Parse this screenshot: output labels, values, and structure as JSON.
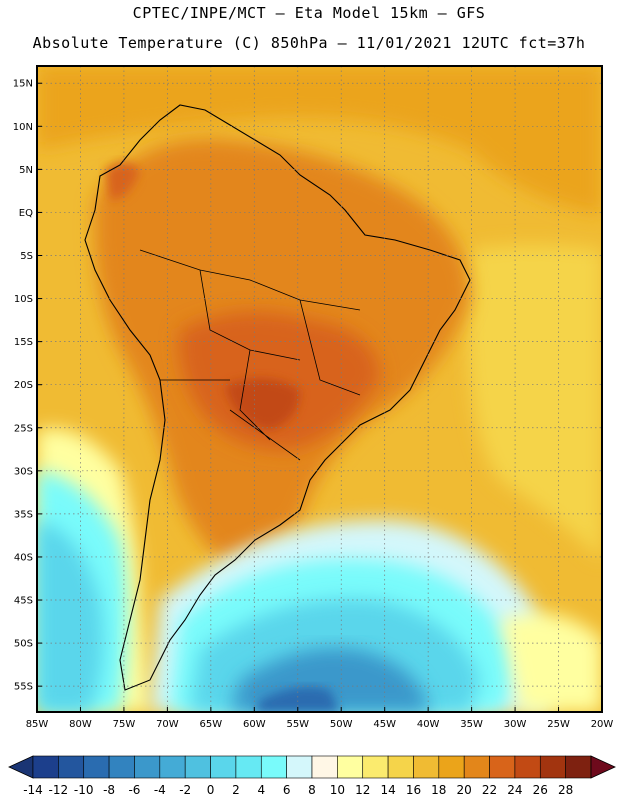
{
  "header": {
    "line1": "CPTEC/INPE/MCT –  Eta Model 15km – GFS",
    "line2": "Absolute Temperature (C) 850hPa – 11/01/2021 12UTC fct=37h"
  },
  "map": {
    "lat_labels": [
      "15N",
      "10N",
      "5N",
      "EQ",
      "5S",
      "10S",
      "15S",
      "20S",
      "25S",
      "30S",
      "35S",
      "40S",
      "45S",
      "50S",
      "55S"
    ],
    "lat_values": [
      15,
      10,
      5,
      0,
      -5,
      -10,
      -15,
      -20,
      -25,
      -30,
      -35,
      -40,
      -45,
      -50,
      -55
    ],
    "lon_labels": [
      "85W",
      "80W",
      "75W",
      "70W",
      "65W",
      "60W",
      "55W",
      "50W",
      "45W",
      "40W",
      "35W",
      "30W",
      "25W",
      "20W"
    ],
    "lon_values": [
      -85,
      -80,
      -75,
      -70,
      -65,
      -60,
      -55,
      -50,
      -45,
      -40,
      -35,
      -30,
      -25,
      -20
    ],
    "lon_range": [
      -85,
      -20
    ],
    "lat_range": [
      -58,
      17
    ]
  },
  "colorbar": {
    "labels": [
      "-14",
      "-12",
      "-10",
      "-8",
      "-6",
      "-4",
      "-2",
      "0",
      "2",
      "4",
      "6",
      "8",
      "10",
      "12",
      "14",
      "16",
      "18",
      "20",
      "22",
      "24",
      "26",
      "28"
    ],
    "colors": [
      "#1c3f8c",
      "#23569e",
      "#2a6cb0",
      "#3283bf",
      "#3b98cb",
      "#44abd6",
      "#4fc1e0",
      "#5ad6eb",
      "#66e9f3",
      "#79fbfb",
      "#d4f7fb",
      "#fff7e6",
      "#ffffa0",
      "#fbeb6e",
      "#f5d44a",
      "#f0bb33",
      "#eba41a",
      "#e3861a",
      "#d8641a",
      "#c24a14",
      "#a2340f",
      "#7e2110"
    ],
    "under_color": "#1a3574",
    "over_color": "#6e0a1c"
  }
}
